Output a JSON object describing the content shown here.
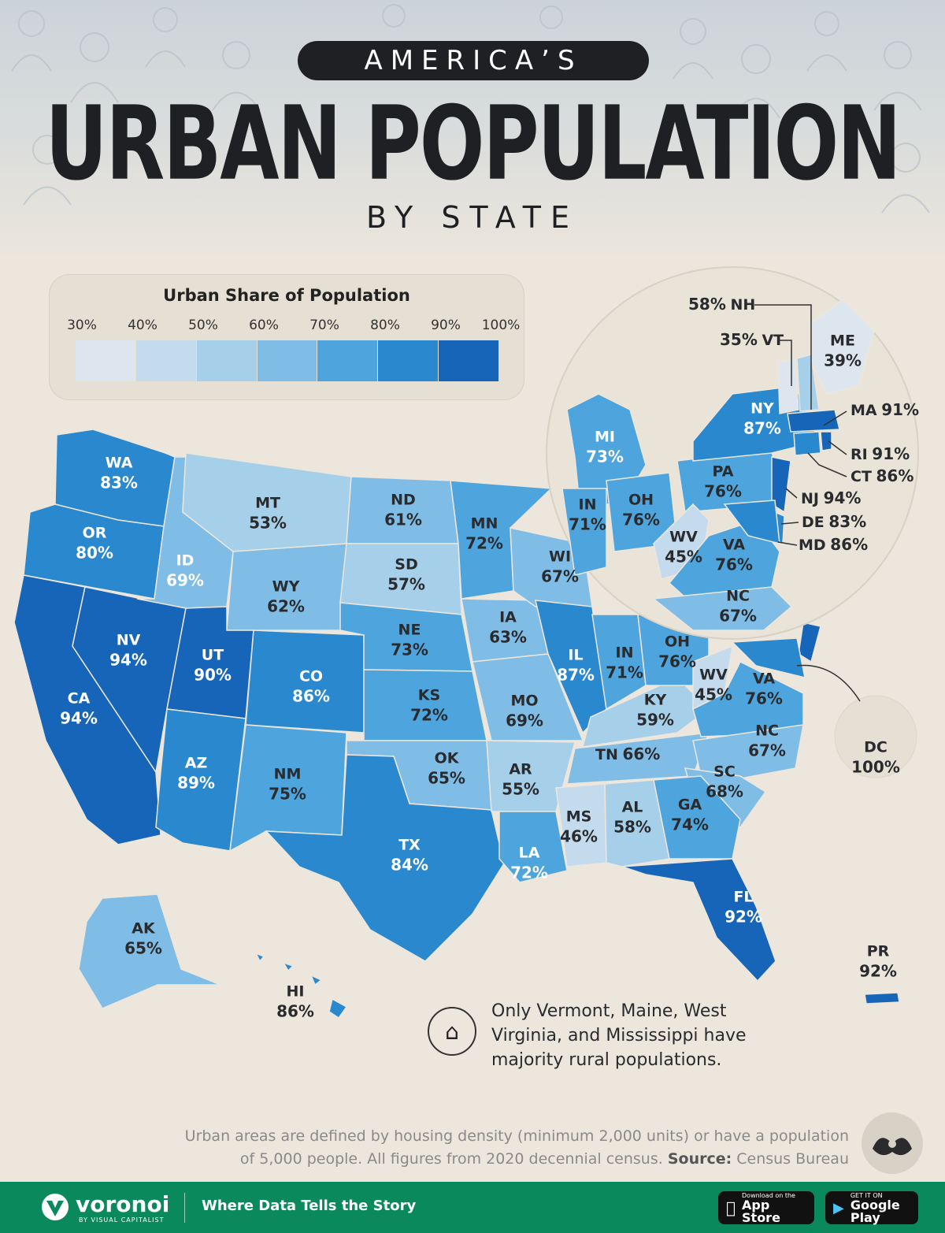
{
  "header": {
    "kicker": "AMERICA’S",
    "title": "URBAN POPULATION",
    "subtitle": "BY STATE"
  },
  "legend": {
    "title": "Urban Share of Population",
    "ticks": [
      "30%",
      "40%",
      "50%",
      "60%",
      "70%",
      "80%",
      "90%",
      "100%"
    ],
    "colors": [
      "#dde6ef",
      "#c4dbed",
      "#a6cfea",
      "#7fbde6",
      "#4ea4dc",
      "#2a88cf",
      "#1765b8"
    ]
  },
  "states": [
    {
      "code": "WA",
      "pct": "83%"
    },
    {
      "code": "OR",
      "pct": "80%"
    },
    {
      "code": "CA",
      "pct": "94%"
    },
    {
      "code": "NV",
      "pct": "94%"
    },
    {
      "code": "ID",
      "pct": "69%"
    },
    {
      "code": "MT",
      "pct": "53%"
    },
    {
      "code": "WY",
      "pct": "62%"
    },
    {
      "code": "UT",
      "pct": "90%"
    },
    {
      "code": "AZ",
      "pct": "89%"
    },
    {
      "code": "CO",
      "pct": "86%"
    },
    {
      "code": "NM",
      "pct": "75%"
    },
    {
      "code": "ND",
      "pct": "61%"
    },
    {
      "code": "SD",
      "pct": "57%"
    },
    {
      "code": "NE",
      "pct": "73%"
    },
    {
      "code": "KS",
      "pct": "72%"
    },
    {
      "code": "OK",
      "pct": "65%"
    },
    {
      "code": "TX",
      "pct": "84%"
    },
    {
      "code": "MN",
      "pct": "72%"
    },
    {
      "code": "IA",
      "pct": "63%"
    },
    {
      "code": "MO",
      "pct": "69%"
    },
    {
      "code": "AR",
      "pct": "55%"
    },
    {
      "code": "LA",
      "pct": "72%"
    },
    {
      "code": "WI",
      "pct": "67%"
    },
    {
      "code": "IL",
      "pct": "87%"
    },
    {
      "code": "MS",
      "pct": "46%"
    },
    {
      "code": "AL",
      "pct": "58%"
    },
    {
      "code": "TN",
      "pct": "66%"
    },
    {
      "code": "KY",
      "pct": "59%"
    },
    {
      "code": "IN",
      "pct": "71%"
    },
    {
      "code": "OH",
      "pct": "76%"
    },
    {
      "code": "WV",
      "pct": "45%"
    },
    {
      "code": "VA",
      "pct": "76%"
    },
    {
      "code": "NC",
      "pct": "67%"
    },
    {
      "code": "SC",
      "pct": "68%"
    },
    {
      "code": "GA",
      "pct": "74%"
    },
    {
      "code": "FL",
      "pct": "92%"
    },
    {
      "code": "AK",
      "pct": "65%"
    },
    {
      "code": "HI",
      "pct": "86%"
    },
    {
      "code": "PR",
      "pct": "92%"
    },
    {
      "code": "DC",
      "pct": "100%"
    }
  ],
  "inset": {
    "states": [
      {
        "code": "MI",
        "pct": "73%"
      },
      {
        "code": "NY",
        "pct": "87%"
      },
      {
        "code": "PA",
        "pct": "76%"
      },
      {
        "code": "IN",
        "pct": "71%"
      },
      {
        "code": "OH",
        "pct": "76%"
      },
      {
        "code": "WV",
        "pct": "45%"
      },
      {
        "code": "VA",
        "pct": "76%"
      },
      {
        "code": "NC",
        "pct": "67%"
      },
      {
        "code": "ME",
        "pct": "39%"
      }
    ],
    "callouts": [
      {
        "code": "NH",
        "pct": "58%"
      },
      {
        "code": "VT",
        "pct": "35%"
      },
      {
        "code": "MA",
        "pct": "91%"
      },
      {
        "code": "RI",
        "pct": "91%"
      },
      {
        "code": "CT",
        "pct": "86%"
      },
      {
        "code": "NJ",
        "pct": "94%"
      },
      {
        "code": "DE",
        "pct": "83%"
      },
      {
        "code": "MD",
        "pct": "86%"
      }
    ]
  },
  "note": "Only Vermont, Maine, West Virginia, and Mississippi have majority rural populations.",
  "footnote": {
    "line1": "Urban areas are defined by housing density (minimum 2,000 units) or have a population",
    "line2": "of 5,000 people. All figures from 2020 decennial census.",
    "source_label": "Source:",
    "source": "Census Bureau"
  },
  "footer": {
    "brand": "voronoi",
    "brand_sub": "BY VISUAL CAPITALIST",
    "tagline": "Where Data Tells the Story",
    "appstore_small": "Download on the",
    "appstore_large": "App Store",
    "googleplay_small": "GET IT ON",
    "googleplay_large": "Google Play",
    "color": "#0a8a5c"
  }
}
